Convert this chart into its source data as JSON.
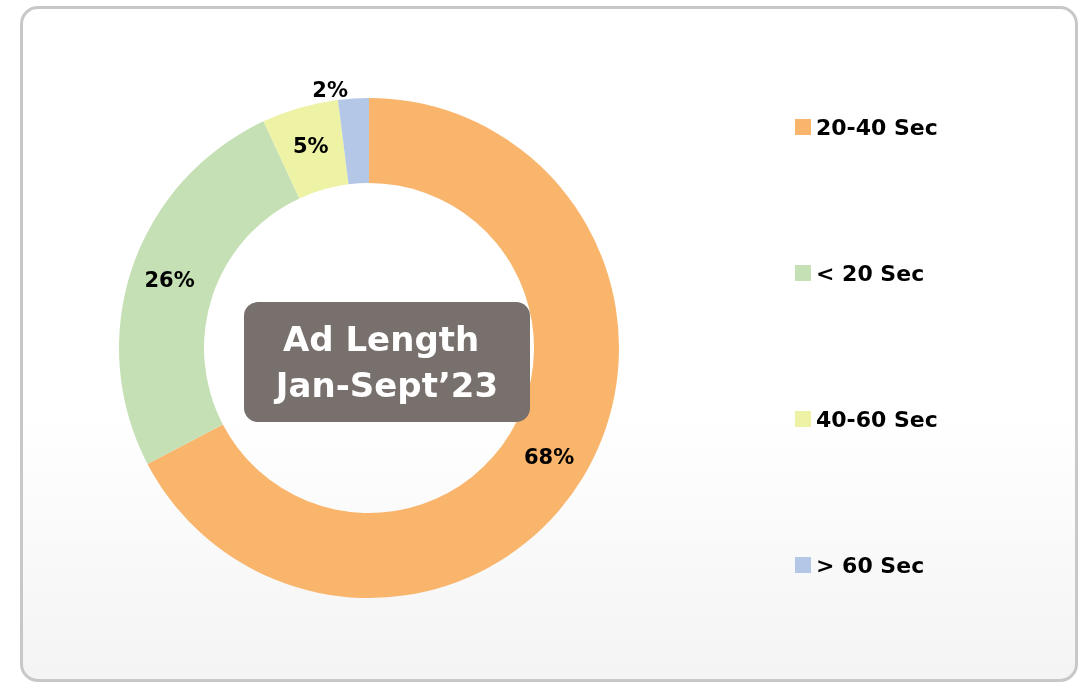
{
  "chart_data": {
    "type": "donut",
    "title": "Ad Length Jan-Sept’23",
    "categories": [
      "20-40 Sec",
      "< 20 Sec",
      "40-60 Sec",
      "> 60 Sec"
    ],
    "values": [
      68,
      26,
      5,
      2
    ],
    "colors": [
      "#f8b56b",
      "#c5e0b4",
      "#eef2a5",
      "#b4c7e7"
    ],
    "value_labels": [
      "68%",
      "26%",
      "5%",
      "2%"
    ],
    "legend": "right"
  }
}
